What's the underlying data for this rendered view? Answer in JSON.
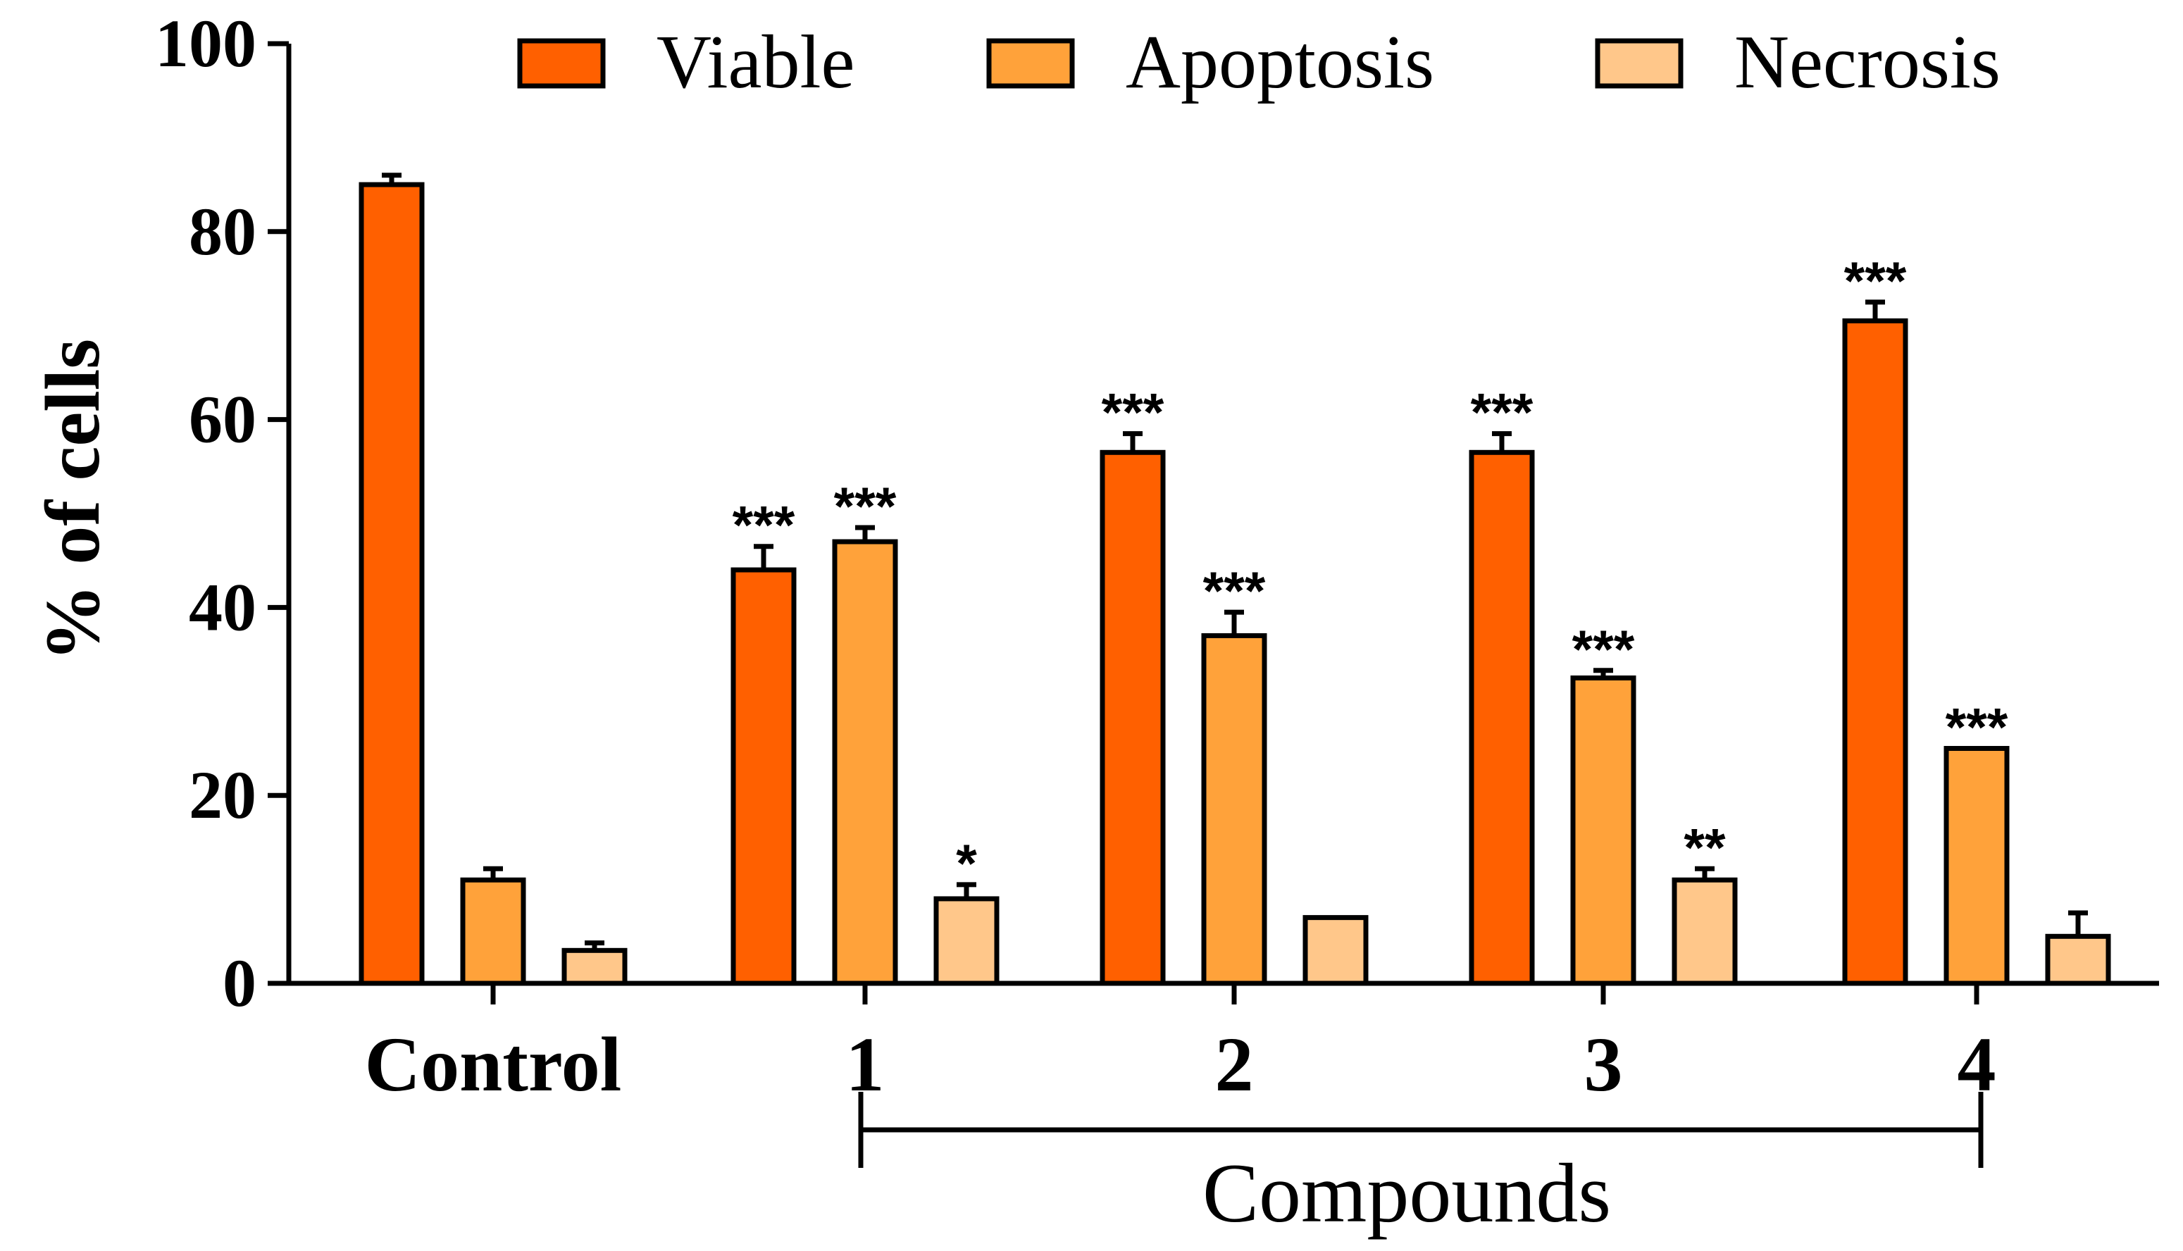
{
  "chart_data": {
    "type": "bar",
    "title": "",
    "xlabel": "",
    "ylabel": "% of cells",
    "ylim": [
      0,
      100
    ],
    "yticks": [
      0,
      20,
      40,
      60,
      80,
      100
    ],
    "yticks_text": [
      "0",
      "20",
      "40",
      "60",
      "80",
      "100"
    ],
    "grid": false,
    "legend_position": "top",
    "categories": [
      "Control",
      "1",
      "2",
      "3",
      "4"
    ],
    "group_bracket": {
      "label": "Compounds",
      "from": "1",
      "to": "4"
    },
    "series": [
      {
        "name": "Viable",
        "color": "#ff6000",
        "values": [
          85,
          44,
          56.5,
          56.5,
          70.5
        ],
        "errors": [
          1,
          2.5,
          2,
          2,
          2
        ],
        "significance": [
          "",
          "***",
          "***",
          "***",
          "***"
        ]
      },
      {
        "name": "Apoptosis",
        "color": "#ffa23a",
        "values": [
          11,
          47,
          37,
          32.5,
          25
        ],
        "errors": [
          1.2,
          1.5,
          2.5,
          0.8,
          0
        ],
        "significance": [
          "",
          "***",
          "***",
          "***",
          "***"
        ]
      },
      {
        "name": "Necrosis",
        "color": "#ffc78a",
        "values": [
          3.5,
          9,
          7,
          11,
          5
        ],
        "errors": [
          0.8,
          1.5,
          0,
          1.2,
          2.5
        ],
        "significance": [
          "",
          "*",
          "",
          "**",
          ""
        ]
      }
    ]
  }
}
